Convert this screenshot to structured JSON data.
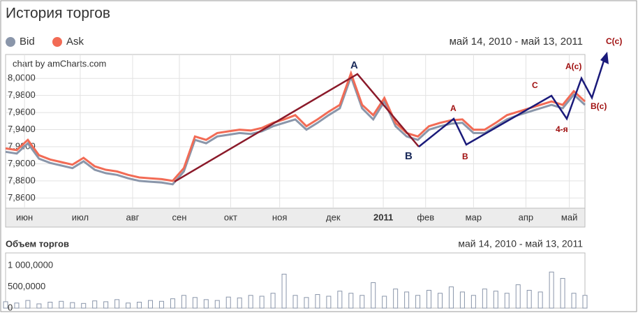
{
  "title": "История торгов",
  "date_range": "май 14, 2010 - май 13, 2011",
  "credit": "chart by amCharts.com",
  "annotations": [
    "A",
    "B",
    "A",
    "B",
    "C",
    "A(c)",
    "B(c)",
    "4-я",
    "C(c)"
  ],
  "chart_data": [
    {
      "type": "line",
      "xlim": [
        0,
        52
      ],
      "ylim": [
        7.848,
        8.028
      ],
      "x": [
        0,
        1,
        2,
        3,
        4,
        5,
        6,
        7,
        8,
        9,
        10,
        11,
        12,
        13,
        14,
        15,
        16,
        17,
        18,
        19,
        20,
        21,
        22,
        23,
        24,
        25,
        26,
        27,
        28,
        29,
        30,
        31,
        32,
        33,
        34,
        35,
        36,
        37,
        38,
        39,
        40,
        41,
        42,
        43,
        44,
        45,
        46,
        47,
        48,
        49,
        50,
        51,
        52
      ],
      "xticks": [
        {
          "value": 1.7,
          "label": "июн"
        },
        {
          "value": 6.7,
          "label": "июл"
        },
        {
          "value": 11.4,
          "label": "авг"
        },
        {
          "value": 15.6,
          "label": "сен"
        },
        {
          "value": 20.2,
          "label": "окт"
        },
        {
          "value": 24.6,
          "label": "ноя"
        },
        {
          "value": 29.4,
          "label": "дек"
        },
        {
          "value": 33.9,
          "label": "2011"
        },
        {
          "value": 37.7,
          "label": "фев"
        },
        {
          "value": 42,
          "label": "мар"
        },
        {
          "value": 46.7,
          "label": "апр"
        },
        {
          "value": 50.6,
          "label": "май"
        }
      ],
      "yticks": [
        {
          "value": 7.86,
          "label": "7,8600"
        },
        {
          "value": 7.88,
          "label": "7,8800"
        },
        {
          "value": 7.9,
          "label": "7,9000"
        },
        {
          "value": 7.92,
          "label": "7,9200"
        },
        {
          "value": 7.94,
          "label": "7,9400"
        },
        {
          "value": 7.96,
          "label": "7,9600"
        },
        {
          "value": 7.98,
          "label": "7,9800"
        },
        {
          "value": 8.0,
          "label": "8,0000"
        }
      ],
      "grid": true,
      "series": [
        {
          "name": "Bid",
          "color": "#8a96aa",
          "values": [
            7.914,
            7.912,
            7.924,
            7.906,
            7.901,
            7.898,
            7.895,
            7.903,
            7.893,
            7.889,
            7.887,
            7.883,
            7.88,
            7.879,
            7.878,
            7.876,
            7.891,
            7.928,
            7.924,
            7.932,
            7.934,
            7.936,
            7.935,
            7.938,
            7.944,
            7.948,
            7.952,
            7.94,
            7.948,
            7.957,
            7.965,
            8.002,
            7.965,
            7.952,
            7.973,
            7.944,
            7.932,
            7.928,
            7.94,
            7.944,
            7.947,
            7.948,
            7.936,
            7.936,
            7.944,
            7.952,
            7.957,
            7.961,
            7.965,
            7.969,
            7.965,
            7.981,
            7.969
          ]
        },
        {
          "name": "Ask",
          "color": "#f26b55",
          "values": [
            7.918,
            7.916,
            7.928,
            7.91,
            7.905,
            7.902,
            7.899,
            7.907,
            7.897,
            7.893,
            7.891,
            7.887,
            7.884,
            7.883,
            7.882,
            7.88,
            7.895,
            7.932,
            7.928,
            7.936,
            7.938,
            7.94,
            7.939,
            7.942,
            7.948,
            7.952,
            7.957,
            7.944,
            7.952,
            7.961,
            7.969,
            8.006,
            7.969,
            7.957,
            7.977,
            7.948,
            7.936,
            7.932,
            7.944,
            7.948,
            7.951,
            7.952,
            7.94,
            7.94,
            7.948,
            7.957,
            7.961,
            7.965,
            7.969,
            7.973,
            7.969,
            7.985,
            7.973
          ]
        }
      ]
    },
    {
      "type": "bar",
      "title": "Объем торгов",
      "xlim": [
        0,
        52
      ],
      "ylim": [
        0,
        1300000
      ],
      "color": "#8a96aa",
      "x": [
        0,
        1,
        2,
        3,
        4,
        5,
        6,
        7,
        8,
        9,
        10,
        11,
        12,
        13,
        14,
        15,
        16,
        17,
        18,
        19,
        20,
        21,
        22,
        23,
        24,
        25,
        26,
        27,
        28,
        29,
        30,
        31,
        32,
        33,
        34,
        35,
        36,
        37,
        38,
        39,
        40,
        41,
        42,
        43,
        44,
        45,
        46,
        47,
        48,
        49,
        50,
        51,
        52
      ],
      "values": [
        150000,
        120000,
        180000,
        100000,
        140000,
        160000,
        130000,
        110000,
        170000,
        150000,
        200000,
        120000,
        140000,
        180000,
        160000,
        220000,
        300000,
        250000,
        200000,
        180000,
        260000,
        240000,
        300000,
        280000,
        350000,
        800000,
        300000,
        250000,
        320000,
        280000,
        400000,
        350000,
        300000,
        600000,
        280000,
        450000,
        380000,
        300000,
        420000,
        350000,
        500000,
        380000,
        300000,
        450000,
        400000,
        350000,
        550000,
        420000,
        380000,
        850000,
        700000,
        350000,
        300000
      ],
      "yticks": [
        0,
        {
          "value": 500000,
          "label": "500,0000"
        },
        {
          "value": 1000000,
          "label": "1 000,0000"
        }
      ]
    }
  ]
}
